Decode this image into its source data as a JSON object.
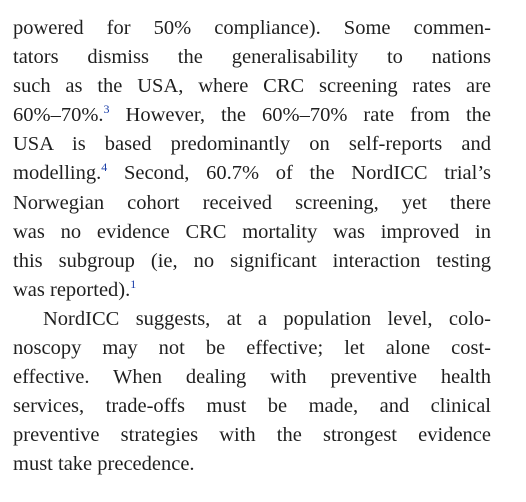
{
  "paragraphs": [
    {
      "lines": [
        {
          "text": "powered for 50% compliance). Some commen-"
        },
        {
          "text": "tators dismiss the generalisability to nations"
        },
        {
          "text": "such as the USA, where CRC screening rates are"
        },
        {
          "text": "60%–70%.",
          "ref": "3",
          "after": " However, the 60%–70% rate from the"
        },
        {
          "text": "USA is based predominantly on self-reports and"
        },
        {
          "text": "modelling.",
          "ref": "4",
          "after": " Second, 60.7% of the NordICC trial’s"
        },
        {
          "text": "Norwegian cohort received screening, yet there"
        },
        {
          "text": "was no evidence CRC mortality was improved in"
        },
        {
          "text": "this subgroup (ie, no significant interaction testing"
        },
        {
          "text": "was reported).",
          "ref": "1"
        }
      ]
    },
    {
      "lines": [
        {
          "text": "NordICC suggests, at a population level, colo-"
        },
        {
          "text": "noscopy may not be effective; let alone cost-"
        },
        {
          "text": "effective. When dealing with preventive health"
        },
        {
          "text": "services, trade-offs must be made, and clinical"
        },
        {
          "text": "preventive strategies with the strongest evidence"
        },
        {
          "text": "must take precedence."
        }
      ]
    }
  ],
  "colors": {
    "text": "#1f1f1f",
    "reference_link": "#1a3ea8"
  }
}
